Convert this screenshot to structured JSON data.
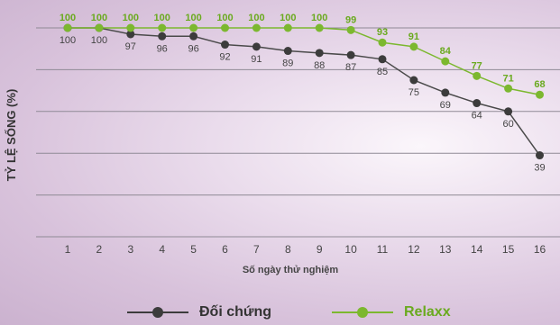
{
  "chart_data": {
    "type": "line",
    "xlabel": "Số ngày thử nghiệm",
    "ylabel": "TỶ LỆ SỐNG (%)",
    "x": [
      1,
      2,
      3,
      4,
      5,
      6,
      7,
      8,
      9,
      10,
      11,
      12,
      13,
      14,
      15,
      16
    ],
    "ylim": [
      0,
      100
    ],
    "grid": true,
    "legend_position": "bottom",
    "series": [
      {
        "name": "Đối chứng",
        "color": "#4a4a4a",
        "values": [
          100,
          100,
          97,
          96,
          96,
          92,
          91,
          89,
          88,
          87,
          85,
          75,
          69,
          64,
          60,
          39
        ]
      },
      {
        "name": "Relaxx",
        "color": "#7cb82f",
        "values": [
          100,
          100,
          100,
          100,
          100,
          100,
          100,
          100,
          100,
          99,
          93,
          91,
          84,
          77,
          71,
          68
        ]
      }
    ]
  }
}
